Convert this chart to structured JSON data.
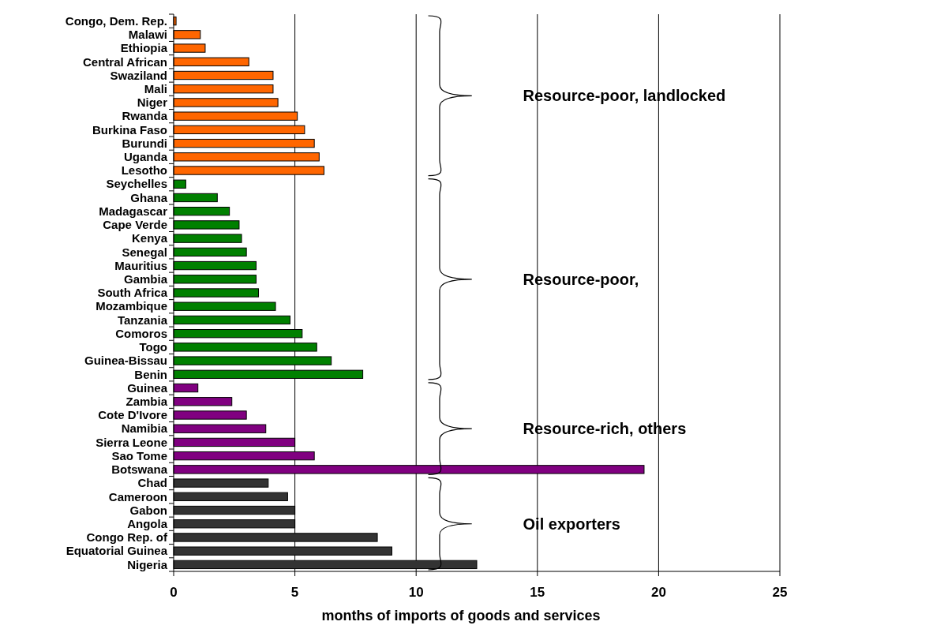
{
  "chart_data": {
    "type": "bar",
    "orientation": "horizontal",
    "categories": [
      "Congo, Dem. Rep.",
      "Malawi",
      "Ethiopia",
      "Central African",
      "Swaziland",
      "Mali",
      "Niger",
      "Rwanda",
      "Burkina Faso",
      "Burundi",
      "Uganda",
      "Lesotho",
      "Seychelles",
      "Ghana",
      "Madagascar",
      "Cape Verde",
      "Kenya",
      "Senegal",
      "Mauritius",
      "Gambia",
      "South Africa",
      "Mozambique",
      "Tanzania",
      "Comoros",
      "Togo",
      "Guinea-Bissau",
      "Benin",
      "Guinea",
      "Zambia",
      "Cote D'Ivore",
      "Namibia",
      "Sierra Leone",
      "Sao Tome",
      "Botswana",
      "Chad",
      "Cameroon",
      "Gabon",
      "Angola",
      "Congo Rep. of",
      "Equatorial Guinea",
      "Nigeria"
    ],
    "values": [
      0.1,
      1.1,
      1.3,
      3.1,
      4.1,
      4.1,
      4.3,
      5.1,
      5.4,
      5.8,
      6.0,
      6.2,
      0.5,
      1.8,
      2.3,
      2.7,
      2.8,
      3.0,
      3.4,
      3.4,
      3.5,
      4.2,
      4.8,
      5.3,
      5.9,
      6.5,
      7.8,
      1.0,
      2.4,
      3.0,
      3.8,
      5.0,
      5.8,
      19.4,
      3.9,
      4.7,
      5.0,
      5.0,
      8.4,
      9.0,
      12.5
    ],
    "colors": [
      "#ff6600",
      "#ff6600",
      "#ff6600",
      "#ff6600",
      "#ff6600",
      "#ff6600",
      "#ff6600",
      "#ff6600",
      "#ff6600",
      "#ff6600",
      "#ff6600",
      "#ff6600",
      "#008000",
      "#008000",
      "#008000",
      "#008000",
      "#008000",
      "#008000",
      "#008000",
      "#008000",
      "#008000",
      "#008000",
      "#008000",
      "#008000",
      "#008000",
      "#008000",
      "#008000",
      "#800080",
      "#800080",
      "#800080",
      "#800080",
      "#800080",
      "#800080",
      "#800080",
      "#333333",
      "#333333",
      "#333333",
      "#333333",
      "#333333",
      "#333333",
      "#333333"
    ],
    "xlim": [
      0,
      25
    ],
    "xticks": [
      0,
      5,
      10,
      15,
      20,
      25
    ],
    "grid": "x",
    "xlabel": "months of imports of goods and services",
    "annotations": [
      "Resource-poor, landlocked",
      "Resource-poor,",
      "Resource-rich, others",
      "Oil exporters"
    ]
  }
}
